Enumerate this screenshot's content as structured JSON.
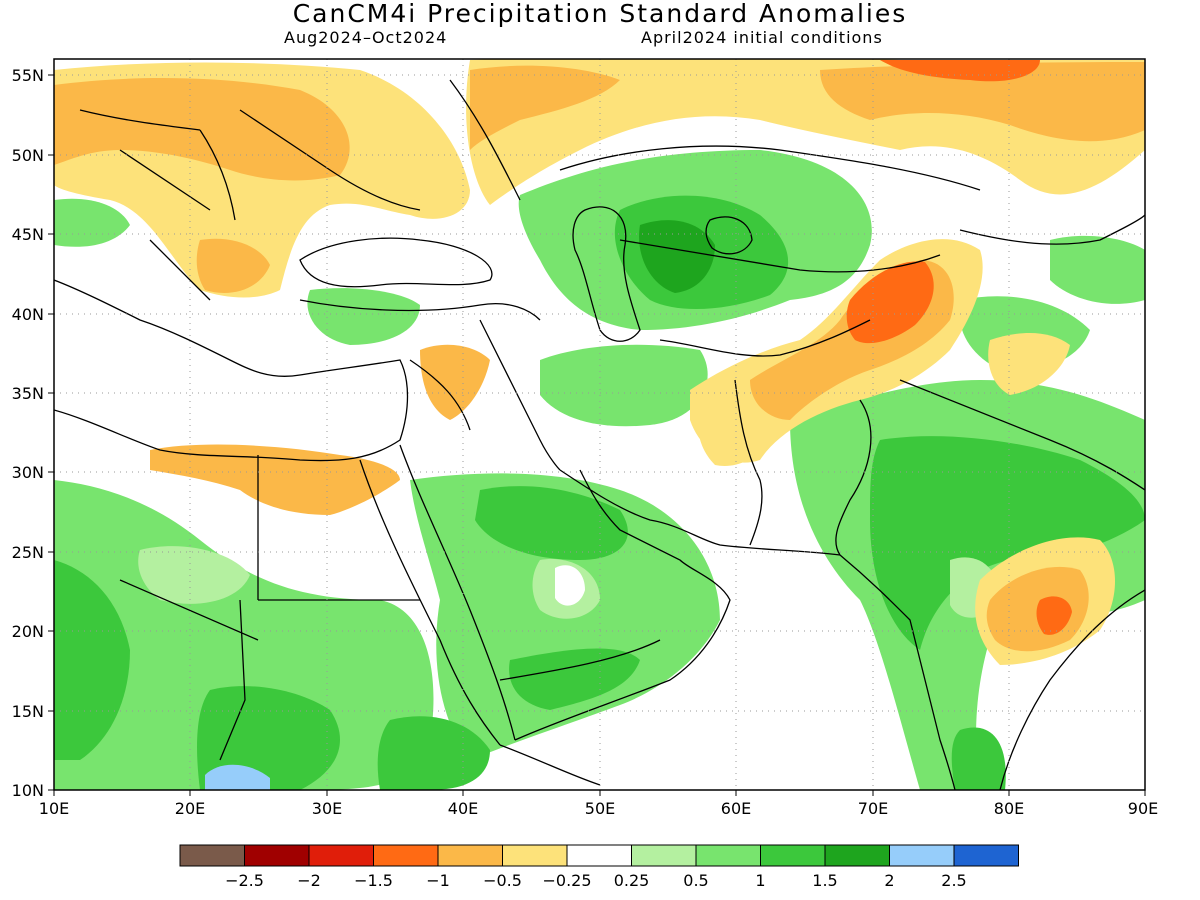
{
  "header": {
    "title": "CanCM4i Precipitation Standard Anomalies",
    "period": "Aug2024–Oct2024",
    "init": "April2024 initial conditions"
  },
  "map": {
    "lon_range": [
      10,
      90
    ],
    "lat_range": [
      10,
      56
    ],
    "lon_ticks": [
      "10E",
      "20E",
      "30E",
      "40E",
      "50E",
      "60E",
      "70E",
      "80E",
      "90E"
    ],
    "lat_ticks": [
      "55N",
      "50N",
      "45N",
      "40N",
      "35N",
      "30N",
      "25N",
      "20N",
      "15N",
      "10N"
    ],
    "grid": "dotted"
  },
  "colorbar": {
    "colors": [
      "#7a5a4a",
      "#a00000",
      "#e01e0a",
      "#ff6a14",
      "#fbb848",
      "#fde27a",
      "#ffffff",
      "#b4f0a0",
      "#78e46e",
      "#3cc83c",
      "#1ea51e",
      "#96cdfa",
      "#1e64d2"
    ],
    "labels": [
      "−2.5",
      "−2",
      "−1.5",
      "−1",
      "−0.5",
      "−0.25",
      "0.25",
      "0.5",
      "1",
      "1.5",
      "2",
      "2.5"
    ]
  }
}
